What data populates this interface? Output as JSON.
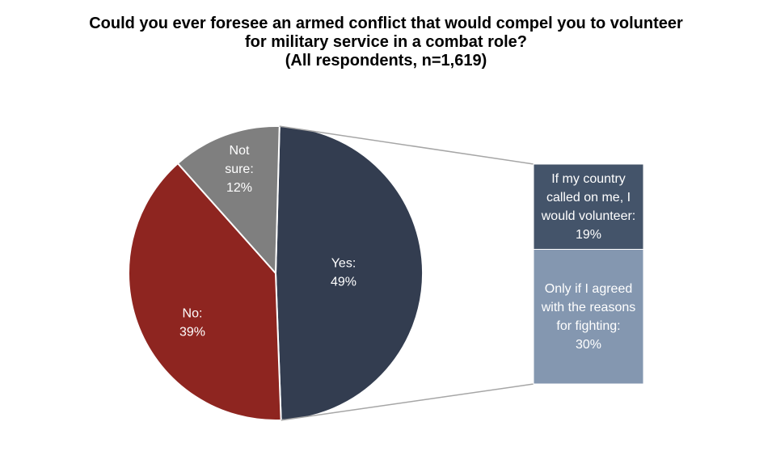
{
  "chart_data": {
    "type": "pie",
    "title_lines": [
      "Could you ever foresee an armed conflict that would compel you to volunteer",
      "for military service in a combat role?",
      "(All respondents, n=1,619)"
    ],
    "slices": [
      {
        "label_lines": [
          "Yes:",
          "49%"
        ],
        "value": 49,
        "color": "#333D50"
      },
      {
        "label_lines": [
          "No:",
          "39%"
        ],
        "value": 39,
        "color": "#8E2520"
      },
      {
        "label_lines": [
          "Not",
          "sure:",
          "12%"
        ],
        "value": 12,
        "color": "#7F7F7F"
      }
    ],
    "breakdown_of": "Yes",
    "breakdown": [
      {
        "label_lines": [
          "If my country",
          "called on me, I",
          "would volunteer:",
          "19%"
        ],
        "value": 19,
        "color": "#44546A"
      },
      {
        "label_lines": [
          "Only if I agreed",
          "with the reasons",
          "for fighting:",
          "30%"
        ],
        "value": 30,
        "color": "#8497B0"
      }
    ]
  }
}
